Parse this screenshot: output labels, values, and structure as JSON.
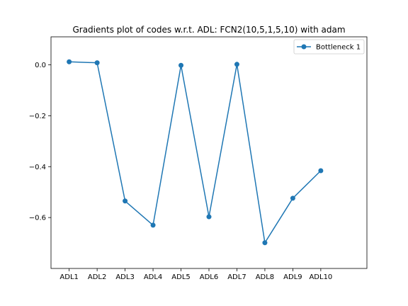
{
  "chart_data": {
    "type": "line",
    "title": "Gradients plot of codes w.r.t. ADL: FCN2(10,5,1,5,10) with adam",
    "xlabel": "",
    "ylabel": "",
    "categories": [
      "ADL1",
      "ADL2",
      "ADL3",
      "ADL4",
      "ADL5",
      "ADL6",
      "ADL7",
      "ADL8",
      "ADL9",
      "ADL10"
    ],
    "series": [
      {
        "name": "Bottleneck 1",
        "values": [
          0.012,
          0.008,
          -0.535,
          -0.63,
          -0.002,
          -0.597,
          0.002,
          -0.699,
          -0.524,
          -0.416
        ],
        "color": "#1f77b4",
        "marker": "circle"
      }
    ],
    "ylim": [
      -0.8,
      0.11
    ],
    "yticks": [
      0.0,
      -0.2,
      -0.4,
      -0.6
    ],
    "ytick_labels": [
      "0.0",
      "−0.2",
      "−0.4",
      "−0.6"
    ],
    "grid": false,
    "legend_position": "top-right"
  }
}
